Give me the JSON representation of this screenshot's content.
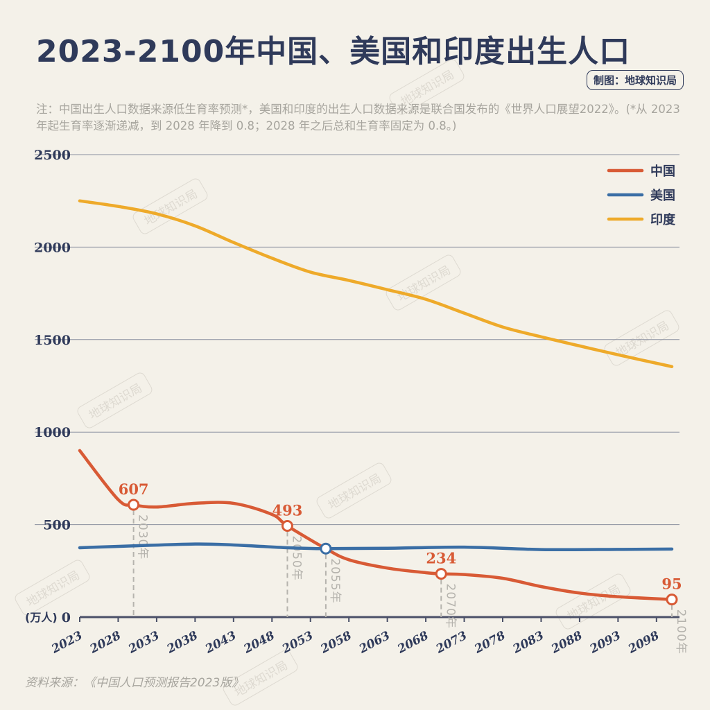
{
  "title": "2023-2100年中国、美国和印度出生人口",
  "credit": "制图：地球知识局",
  "note": "注：中国出生人口数据来源低生育率预测*，美国和印度的出生人口数据来源是联合国发布的《世界人口展望2022》。(*从 2023 年起生育率逐渐递减，到 2028 年降到 0.8；2028 年之后总和生育率固定为 0.8。)",
  "source": "资料来源：《中国人口预测报告2023版》",
  "watermark": "地球知识局",
  "chart_data": {
    "type": "line",
    "ylabel": "(万人)",
    "ylim": [
      0,
      2500
    ],
    "yticks": [
      0,
      500,
      1000,
      1500,
      2000,
      2500
    ],
    "xlim": [
      2023,
      2100
    ],
    "xticks": [
      2023,
      2028,
      2033,
      2038,
      2043,
      2048,
      2053,
      2058,
      2063,
      2068,
      2073,
      2078,
      2083,
      2088,
      2093,
      2098
    ],
    "grid": true,
    "legend_position": "top-right",
    "series": [
      {
        "name": "中国",
        "color": "#d85a35",
        "x": [
          2023,
          2028,
          2030,
          2033,
          2038,
          2043,
          2048,
          2050,
          2055,
          2058,
          2063,
          2068,
          2070,
          2073,
          2078,
          2083,
          2088,
          2093,
          2100
        ],
        "y": [
          900,
          635,
          607,
          595,
          615,
          615,
          555,
          493,
          370,
          310,
          265,
          240,
          234,
          230,
          210,
          165,
          130,
          110,
          95
        ]
      },
      {
        "name": "美国",
        "color": "#3a6ea5",
        "x": [
          2023,
          2030,
          2038,
          2043,
          2050,
          2055,
          2063,
          2073,
          2083,
          2093,
          2100
        ],
        "y": [
          375,
          385,
          395,
          390,
          375,
          370,
          372,
          378,
          365,
          366,
          368
        ]
      },
      {
        "name": "印度",
        "color": "#eeaa2a",
        "x": [
          2023,
          2028,
          2033,
          2038,
          2043,
          2048,
          2053,
          2058,
          2063,
          2068,
          2073,
          2078,
          2083,
          2088,
          2093,
          2100
        ],
        "y": [
          2250,
          2220,
          2180,
          2115,
          2025,
          1940,
          1865,
          1820,
          1770,
          1718,
          1643,
          1568,
          1515,
          1466,
          1418,
          1354
        ]
      }
    ],
    "annotations": [
      {
        "year": 2030,
        "value": 607,
        "label": "607",
        "year_label": "2030年",
        "series": "中国"
      },
      {
        "year": 2050,
        "value": 493,
        "label": "493",
        "year_label": "2050年",
        "series": "中国"
      },
      {
        "year": 2055,
        "value": 370,
        "label": "",
        "year_label": "2055年",
        "series": "美国"
      },
      {
        "year": 2070,
        "value": 234,
        "label": "234",
        "year_label": "2070年",
        "series": "中国"
      },
      {
        "year": 2100,
        "value": 95,
        "label": "95",
        "year_label": "2100年",
        "series": "中国"
      }
    ]
  }
}
